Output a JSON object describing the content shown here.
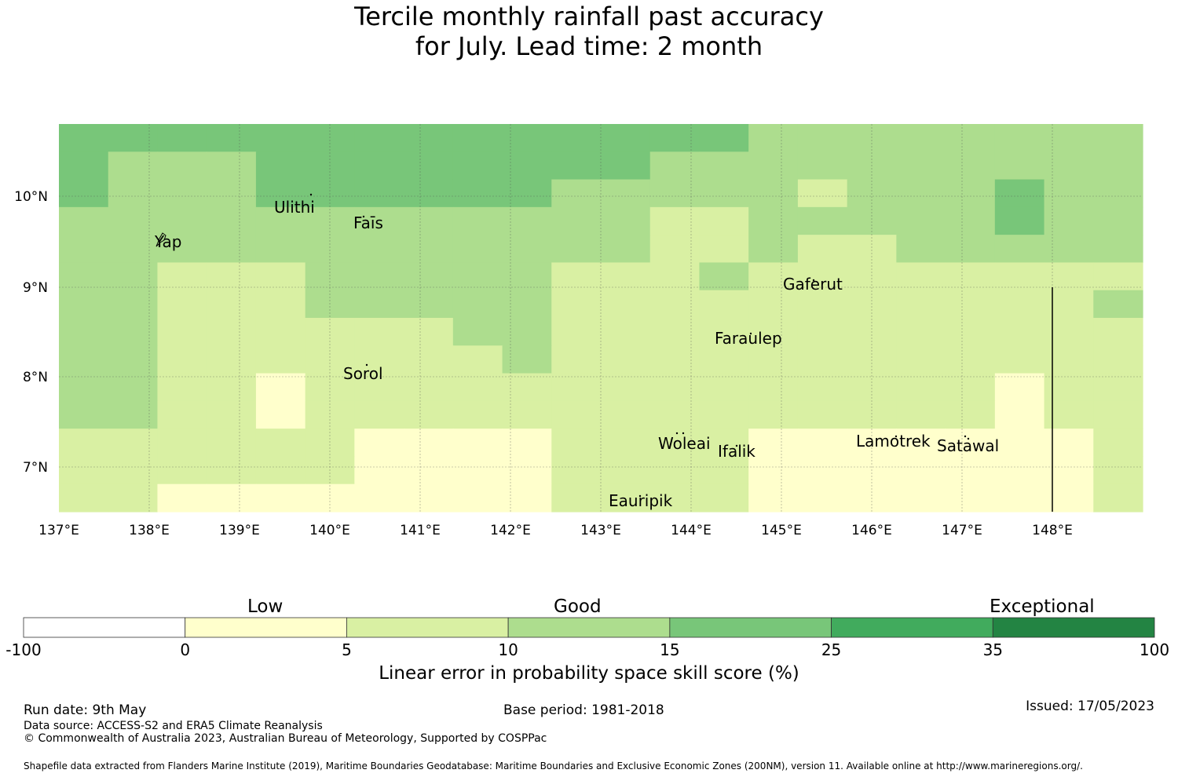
{
  "title": {
    "line1": "Tercile monthly rainfall past accuracy",
    "line2": "for July. Lead time: 2 month"
  },
  "map": {
    "lon_ticks": [
      "137°E",
      "138°E",
      "139°E",
      "140°E",
      "141°E",
      "142°E",
      "143°E",
      "144°E",
      "145°E",
      "146°E",
      "147°E",
      "148°E"
    ],
    "lat_ticks": [
      "10°N",
      "9°N",
      "8°N",
      "7°N"
    ],
    "places": [
      {
        "name": "Ulithi"
      },
      {
        "name": "Faīs"
      },
      {
        "name": "Yap"
      },
      {
        "name": "Gaferut"
      },
      {
        "name": "Faraulep"
      },
      {
        "name": "Sorol"
      },
      {
        "name": "Woleai"
      },
      {
        "name": "Ifalik"
      },
      {
        "name": "Lamotrek"
      },
      {
        "name": "Satawal"
      },
      {
        "name": "Eauripik"
      }
    ],
    "category_colors": {
      "c1": "#ffffcc",
      "c2": "#d9f0a3",
      "c3": "#addd8e",
      "c4": "#78c679"
    },
    "grid_rows": [
      "4444444444444433333333",
      "4333444444443333333333",
      "4333444444333332333433",
      "3333333333332233333433",
      "3333333333332232233333",
      "3322233333222322222222",
      "3322233333222222222223",
      "3322222233222222222222",
      "3322222223222222222222",
      "3322122222222222222122",
      "3322122222222222222122",
      "2222221111222211111112",
      "2222221111222211111112",
      "2211111111222211111112"
    ]
  },
  "legend": {
    "categories": [
      "Low",
      "Good",
      "Exceptional"
    ],
    "ticks": [
      "-100",
      "0",
      "5",
      "10",
      "15",
      "25",
      "35",
      "100"
    ],
    "colors": [
      "#ffffff",
      "#ffffcc",
      "#d9f0a3",
      "#addd8e",
      "#78c679",
      "#41ab5d",
      "#238443"
    ],
    "label": "Linear error in probability space skill score (%)"
  },
  "footer": {
    "run_date": "Run date: 9th May",
    "base_period": "Base period: 1981-2018",
    "issued": "Issued: 17/05/2023",
    "data_source": "Data source: ACCESS-S2 and ERA5 Climate Reanalysis",
    "copyright": "© Commonwealth of Australia 2023, Australian Bureau of Meteorology, Supported by COSPPac",
    "shapefile": "Shapefile data extracted from Flanders Marine Institute (2019), Maritime Boundaries Geodatabase: Maritime Boundaries and Exclusive Economic Zones (200NM), version 11. Available online at http://www.marineregions.org/."
  }
}
